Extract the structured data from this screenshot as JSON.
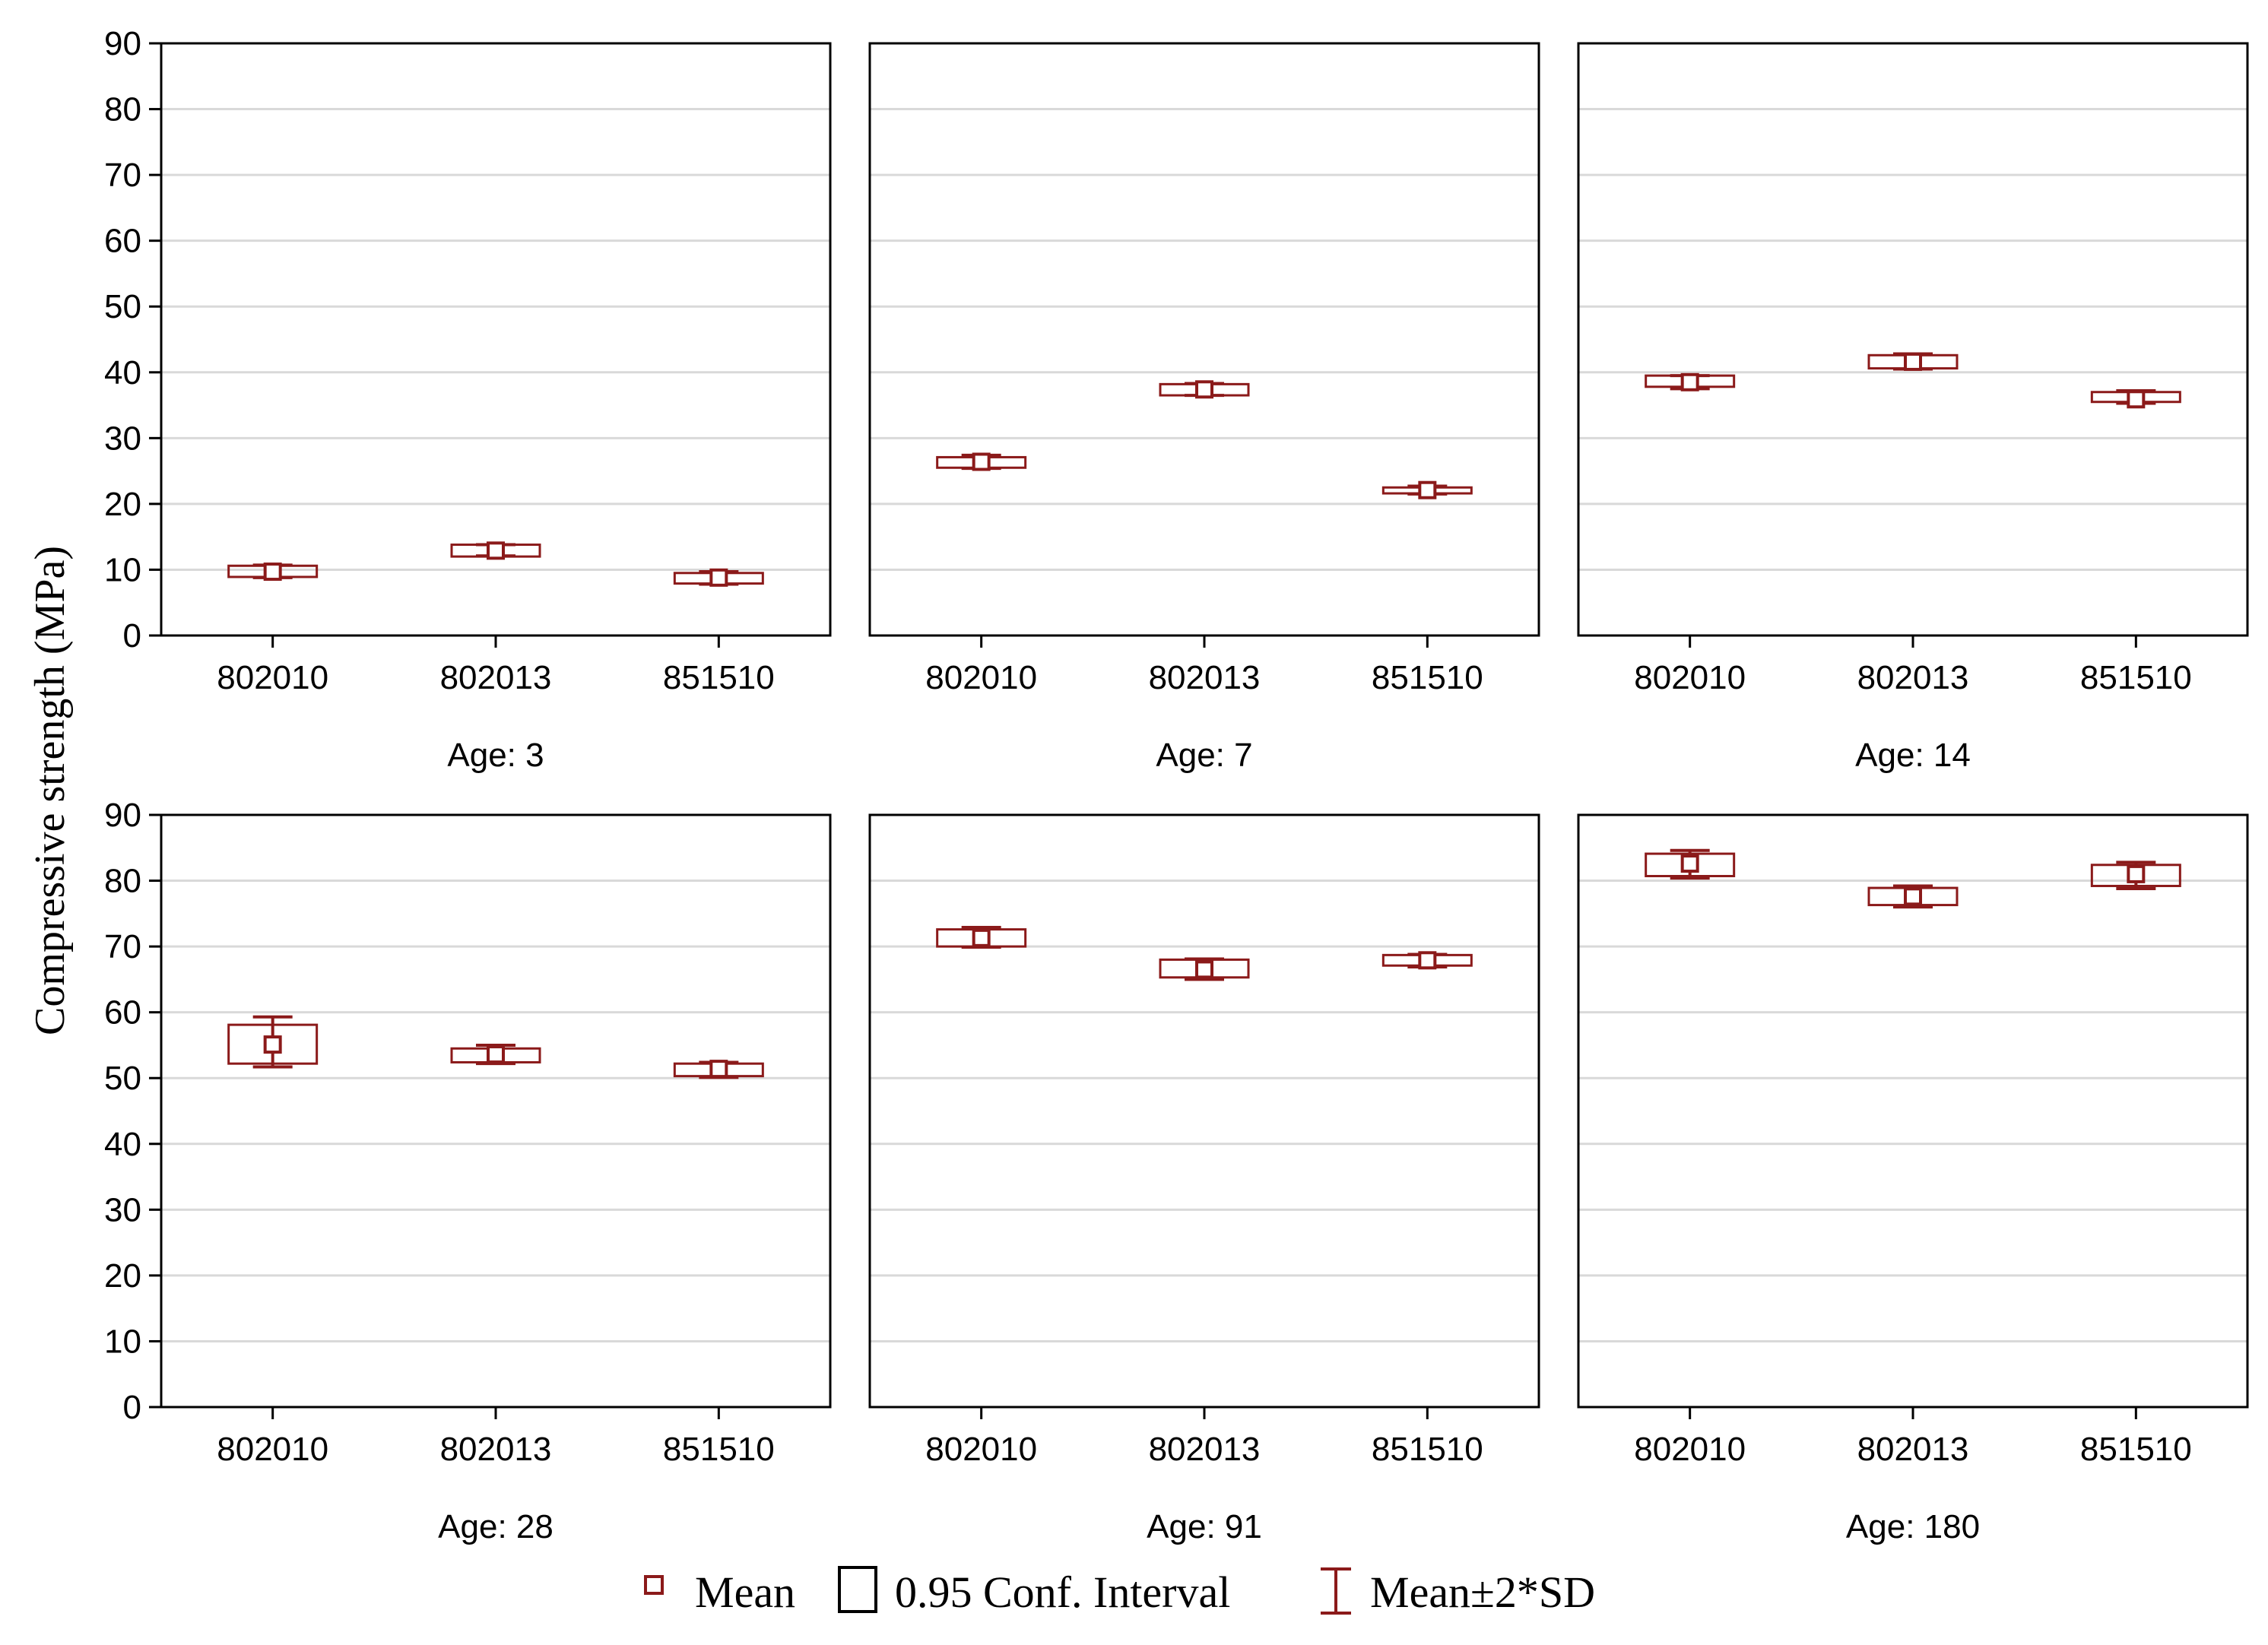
{
  "chart_data": {
    "type": "box",
    "ylabel": "Compressive strength (MPa)",
    "ylim": [
      0,
      90
    ],
    "yticks": [
      0,
      10,
      20,
      30,
      40,
      50,
      60,
      70,
      80,
      90
    ],
    "categories": [
      "802010",
      "802013",
      "851510"
    ],
    "grid": true,
    "legend": {
      "placement": "bottom-center",
      "entries": [
        "Mean",
        "0.95 Conf. Interval",
        "Mean±2*SD"
      ]
    },
    "colors": {
      "series": "#8B1A1A",
      "box_fill": "#ffffff",
      "grid": "#d9d9d9",
      "axis": "#000000"
    },
    "panels": [
      {
        "label": "Age: 3",
        "items": [
          {
            "category": "802010",
            "mean": 9.7,
            "ci": [
              8.9,
              10.6
            ],
            "sd2": [
              8.8,
              10.7
            ]
          },
          {
            "category": "802013",
            "mean": 12.9,
            "ci": [
              12.0,
              13.8
            ],
            "sd2": [
              12.1,
              13.8
            ]
          },
          {
            "category": "851510",
            "mean": 8.8,
            "ci": [
              7.9,
              9.5
            ],
            "sd2": [
              7.8,
              9.7
            ]
          }
        ]
      },
      {
        "label": "Age: 7",
        "items": [
          {
            "category": "802010",
            "mean": 26.4,
            "ci": [
              25.5,
              27.1
            ],
            "sd2": [
              25.4,
              27.4
            ]
          },
          {
            "category": "802013",
            "mean": 37.4,
            "ci": [
              36.5,
              38.2
            ],
            "sd2": [
              36.5,
              38.3
            ]
          },
          {
            "category": "851510",
            "mean": 22.1,
            "ci": [
              21.6,
              22.5
            ],
            "sd2": [
              21.5,
              22.7
            ]
          }
        ]
      },
      {
        "label": "Age: 14",
        "items": [
          {
            "category": "802010",
            "mean": 38.5,
            "ci": [
              37.8,
              39.5
            ],
            "sd2": [
              37.5,
              39.5
            ]
          },
          {
            "category": "802013",
            "mean": 41.6,
            "ci": [
              40.6,
              42.6
            ],
            "sd2": [
              40.5,
              42.8
            ]
          },
          {
            "category": "851510",
            "mean": 35.9,
            "ci": [
              35.5,
              37.0
            ],
            "sd2": [
              35.3,
              37.2
            ]
          }
        ]
      },
      {
        "label": "Age: 28",
        "items": [
          {
            "category": "802010",
            "mean": 55.1,
            "ci": [
              52.2,
              58.1
            ],
            "sd2": [
              51.7,
              59.3
            ]
          },
          {
            "category": "802013",
            "mean": 53.6,
            "ci": [
              52.4,
              54.5
            ],
            "sd2": [
              52.2,
              55.0
            ]
          },
          {
            "category": "851510",
            "mean": 51.4,
            "ci": [
              50.3,
              52.2
            ],
            "sd2": [
              50.1,
              52.4
            ]
          }
        ]
      },
      {
        "label": "Age: 91",
        "items": [
          {
            "category": "802010",
            "mean": 71.3,
            "ci": [
              70.0,
              72.6
            ],
            "sd2": [
              69.9,
              72.9
            ]
          },
          {
            "category": "802013",
            "mean": 66.5,
            "ci": [
              65.3,
              68.0
            ],
            "sd2": [
              65.0,
              68.1
            ]
          },
          {
            "category": "851510",
            "mean": 67.9,
            "ci": [
              67.1,
              68.7
            ],
            "sd2": [
              66.9,
              68.8
            ]
          }
        ]
      },
      {
        "label": "Age: 180",
        "items": [
          {
            "category": "802010",
            "mean": 82.6,
            "ci": [
              80.7,
              84.1
            ],
            "sd2": [
              80.4,
              84.6
            ]
          },
          {
            "category": "802013",
            "mean": 77.6,
            "ci": [
              76.3,
              78.9
            ],
            "sd2": [
              76.0,
              79.2
            ]
          },
          {
            "category": "851510",
            "mean": 81.0,
            "ci": [
              79.2,
              82.4
            ],
            "sd2": [
              78.8,
              82.8
            ]
          }
        ]
      }
    ]
  }
}
